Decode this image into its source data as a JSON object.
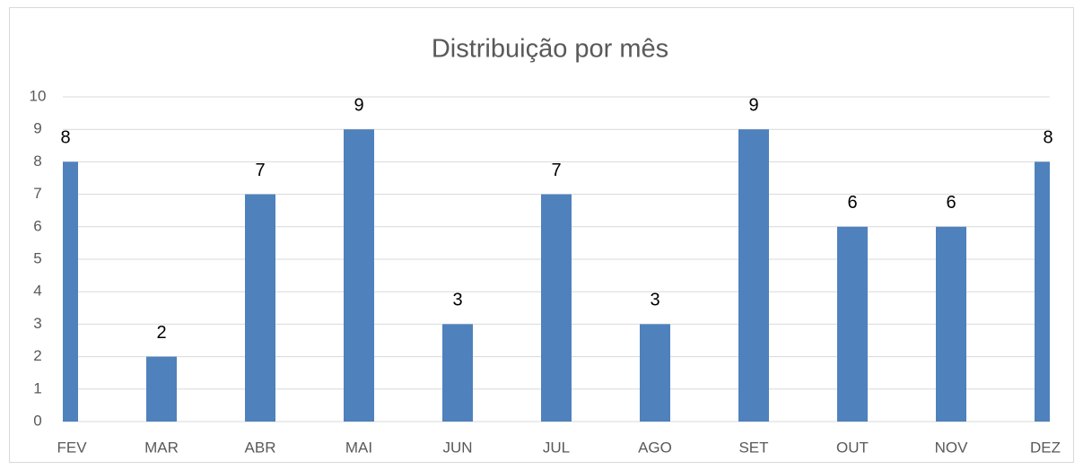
{
  "chart_data": {
    "type": "bar",
    "title": "Distribuição por mês",
    "categories": [
      "FEV",
      "MAR",
      "ABR",
      "MAI",
      "JUN",
      "JUL",
      "AGO",
      "SET",
      "OUT",
      "NOV",
      "DEZ"
    ],
    "values": [
      8,
      2,
      7,
      9,
      3,
      7,
      3,
      9,
      6,
      6,
      8
    ],
    "color": "#4f81bd",
    "ylim": [
      0,
      10
    ],
    "yticks": [
      0,
      1,
      2,
      3,
      4,
      5,
      6,
      7,
      8,
      9,
      10
    ],
    "grid": true
  }
}
